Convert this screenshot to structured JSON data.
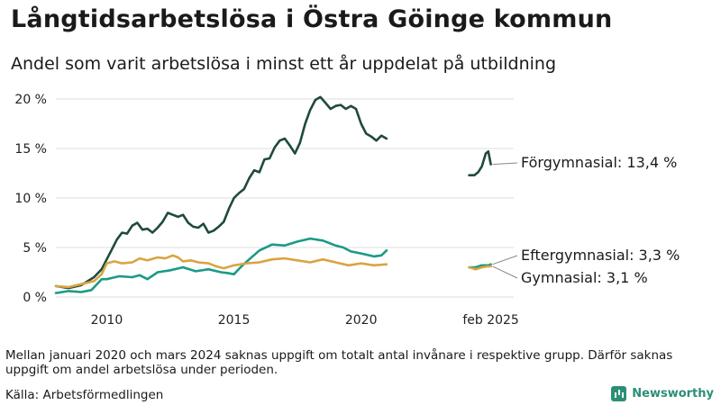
{
  "title": "Långtidsarbetslösa i Östra Göinge kommun",
  "subtitle": "Andel som varit arbetslösa i minst ett år uppdelat på utbildning",
  "note": "Mellan januari 2020 och mars 2024 saknas uppgift om totalt antal invånare i respektive grupp. Därför saknas uppgift om andel arbetslösa under perioden.",
  "source": "Källa: Arbetsförmedlingen",
  "brand": "Newsworthy",
  "colors": {
    "forgymnasial": "#1f4a3e",
    "eftergymnasial": "#1a9a86",
    "gymnasial": "#d9a441"
  },
  "chart_data": {
    "type": "line",
    "title": "Långtidsarbetslösa i Östra Göinge kommun",
    "ylim": [
      0,
      20
    ],
    "y_ticks": [
      0,
      5,
      10,
      15,
      20
    ],
    "y_tick_labels": [
      "0 %",
      "5 %",
      "10 %",
      "15 %",
      "20 %"
    ],
    "x_tick_labels": [
      "2010",
      "2015",
      "2020",
      "feb 2025"
    ],
    "series": [
      {
        "name": "Förgymnasial",
        "end_label": "Förgymnasial: 13,4 %",
        "segments": [
          [
            [
              2008.0,
              1.1
            ],
            [
              2008.5,
              0.9
            ],
            [
              2009.0,
              1.2
            ],
            [
              2009.5,
              2.0
            ],
            [
              2009.8,
              2.8
            ],
            [
              2010.0,
              3.8
            ],
            [
              2010.2,
              4.8
            ],
            [
              2010.4,
              5.8
            ],
            [
              2010.6,
              6.5
            ],
            [
              2010.8,
              6.4
            ],
            [
              2011.0,
              7.2
            ],
            [
              2011.2,
              7.5
            ],
            [
              2011.4,
              6.8
            ],
            [
              2011.6,
              6.9
            ],
            [
              2011.8,
              6.5
            ],
            [
              2012.0,
              7.0
            ],
            [
              2012.2,
              7.6
            ],
            [
              2012.4,
              8.5
            ],
            [
              2012.6,
              8.3
            ],
            [
              2012.8,
              8.1
            ],
            [
              2013.0,
              8.3
            ],
            [
              2013.2,
              7.5
            ],
            [
              2013.4,
              7.1
            ],
            [
              2013.6,
              7.0
            ],
            [
              2013.8,
              7.4
            ],
            [
              2014.0,
              6.5
            ],
            [
              2014.2,
              6.7
            ],
            [
              2014.4,
              7.1
            ],
            [
              2014.6,
              7.6
            ],
            [
              2014.8,
              8.9
            ],
            [
              2015.0,
              10.0
            ],
            [
              2015.2,
              10.5
            ],
            [
              2015.4,
              10.9
            ],
            [
              2015.6,
              12.0
            ],
            [
              2015.8,
              12.8
            ],
            [
              2016.0,
              12.6
            ],
            [
              2016.2,
              13.9
            ],
            [
              2016.4,
              14.0
            ],
            [
              2016.6,
              15.1
            ],
            [
              2016.8,
              15.8
            ],
            [
              2017.0,
              16.0
            ],
            [
              2017.2,
              15.3
            ],
            [
              2017.4,
              14.5
            ],
            [
              2017.6,
              15.6
            ],
            [
              2017.8,
              17.5
            ],
            [
              2018.0,
              18.9
            ],
            [
              2018.2,
              19.9
            ],
            [
              2018.4,
              20.2
            ],
            [
              2018.6,
              19.6
            ],
            [
              2018.8,
              19.0
            ],
            [
              2019.0,
              19.3
            ],
            [
              2019.2,
              19.4
            ],
            [
              2019.4,
              19.0
            ],
            [
              2019.6,
              19.3
            ],
            [
              2019.8,
              19.0
            ],
            [
              2020.0,
              17.5
            ],
            [
              2020.2,
              16.5
            ],
            [
              2020.4,
              16.2
            ],
            [
              2020.6,
              15.8
            ],
            [
              2020.8,
              16.3
            ],
            [
              2021.0,
              16.0
            ]
          ],
          [
            [
              2024.25,
              12.3
            ],
            [
              2024.45,
              12.3
            ],
            [
              2024.6,
              12.6
            ],
            [
              2024.75,
              13.2
            ],
            [
              2024.9,
              14.5
            ],
            [
              2025.0,
              14.7
            ],
            [
              2025.1,
              13.4
            ]
          ]
        ]
      },
      {
        "name": "Eftergymnasial",
        "end_label": "Eftergymnasial:  3,3 %",
        "segments": [
          [
            [
              2008.0,
              0.4
            ],
            [
              2008.5,
              0.6
            ],
            [
              2009.0,
              0.5
            ],
            [
              2009.4,
              0.7
            ],
            [
              2009.8,
              1.8
            ],
            [
              2010.0,
              1.8
            ],
            [
              2010.5,
              2.1
            ],
            [
              2011.0,
              2.0
            ],
            [
              2011.3,
              2.2
            ],
            [
              2011.6,
              1.8
            ],
            [
              2012.0,
              2.5
            ],
            [
              2012.5,
              2.7
            ],
            [
              2013.0,
              3.0
            ],
            [
              2013.5,
              2.6
            ],
            [
              2014.0,
              2.8
            ],
            [
              2014.5,
              2.5
            ],
            [
              2014.8,
              2.4
            ],
            [
              2015.0,
              2.3
            ],
            [
              2015.3,
              3.1
            ],
            [
              2015.6,
              3.8
            ],
            [
              2016.0,
              4.7
            ],
            [
              2016.5,
              5.3
            ],
            [
              2017.0,
              5.2
            ],
            [
              2017.5,
              5.6
            ],
            [
              2018.0,
              5.9
            ],
            [
              2018.5,
              5.7
            ],
            [
              2019.0,
              5.2
            ],
            [
              2019.3,
              5.0
            ],
            [
              2019.6,
              4.6
            ],
            [
              2020.0,
              4.4
            ],
            [
              2020.5,
              4.1
            ],
            [
              2020.8,
              4.2
            ],
            [
              2021.0,
              4.7
            ]
          ],
          [
            [
              2024.25,
              3.0
            ],
            [
              2024.5,
              3.0
            ],
            [
              2024.75,
              3.2
            ],
            [
              2025.0,
              3.2
            ],
            [
              2025.1,
              3.3
            ]
          ]
        ]
      },
      {
        "name": "Gymnasial",
        "end_label": "Gymnasial:  3,1 %",
        "segments": [
          [
            [
              2008.0,
              1.1
            ],
            [
              2008.5,
              1.0
            ],
            [
              2009.0,
              1.3
            ],
            [
              2009.5,
              1.6
            ],
            [
              2009.8,
              2.3
            ],
            [
              2010.0,
              3.4
            ],
            [
              2010.3,
              3.6
            ],
            [
              2010.6,
              3.4
            ],
            [
              2011.0,
              3.5
            ],
            [
              2011.3,
              3.9
            ],
            [
              2011.6,
              3.7
            ],
            [
              2012.0,
              4.0
            ],
            [
              2012.3,
              3.9
            ],
            [
              2012.6,
              4.2
            ],
            [
              2012.8,
              4.0
            ],
            [
              2013.0,
              3.6
            ],
            [
              2013.3,
              3.7
            ],
            [
              2013.6,
              3.5
            ],
            [
              2014.0,
              3.4
            ],
            [
              2014.3,
              3.1
            ],
            [
              2014.6,
              2.9
            ],
            [
              2015.0,
              3.2
            ],
            [
              2015.5,
              3.4
            ],
            [
              2016.0,
              3.5
            ],
            [
              2016.5,
              3.8
            ],
            [
              2017.0,
              3.9
            ],
            [
              2017.5,
              3.7
            ],
            [
              2018.0,
              3.5
            ],
            [
              2018.5,
              3.8
            ],
            [
              2019.0,
              3.5
            ],
            [
              2019.5,
              3.2
            ],
            [
              2020.0,
              3.4
            ],
            [
              2020.5,
              3.2
            ],
            [
              2021.0,
              3.3
            ]
          ],
          [
            [
              2024.25,
              3.0
            ],
            [
              2024.5,
              2.8
            ],
            [
              2024.75,
              3.0
            ],
            [
              2025.0,
              3.1
            ],
            [
              2025.1,
              3.1
            ]
          ]
        ]
      }
    ]
  }
}
